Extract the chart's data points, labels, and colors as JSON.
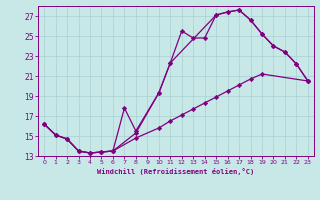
{
  "xlabel": "Windchill (Refroidissement éolien,°C)",
  "bg_color": "#c8e8e8",
  "grid_color": "#a8d0d0",
  "line_color": "#800080",
  "xlim": [
    -0.5,
    23.5
  ],
  "ylim": [
    13,
    28
  ],
  "xticks": [
    0,
    1,
    2,
    3,
    4,
    5,
    6,
    7,
    8,
    9,
    10,
    11,
    12,
    13,
    14,
    15,
    16,
    17,
    18,
    19,
    20,
    21,
    22,
    23
  ],
  "yticks": [
    13,
    15,
    17,
    19,
    21,
    23,
    25,
    27
  ],
  "line1_x": [
    0,
    1,
    2,
    3,
    4,
    5,
    6,
    7,
    8,
    10,
    11,
    12,
    13,
    14,
    15,
    16,
    17,
    18,
    19,
    20,
    21,
    22,
    23
  ],
  "line1_y": [
    16.2,
    15.1,
    14.7,
    13.5,
    13.3,
    13.4,
    13.5,
    17.8,
    15.5,
    19.3,
    22.3,
    25.5,
    24.8,
    24.8,
    27.1,
    27.4,
    27.6,
    26.6,
    25.2,
    24.0,
    23.4,
    22.2,
    20.5
  ],
  "line2_x": [
    0,
    1,
    2,
    3,
    4,
    5,
    6,
    8,
    10,
    11,
    15,
    16,
    17,
    18,
    19,
    20,
    21,
    22,
    23
  ],
  "line2_y": [
    16.2,
    15.1,
    14.7,
    13.5,
    13.3,
    13.4,
    13.5,
    15.3,
    19.3,
    22.3,
    27.1,
    27.4,
    27.6,
    26.6,
    25.2,
    24.0,
    23.4,
    22.2,
    20.5
  ],
  "line3_x": [
    0,
    1,
    2,
    3,
    4,
    5,
    6,
    8,
    10,
    11,
    12,
    13,
    14,
    15,
    16,
    17,
    18,
    19,
    23
  ],
  "line3_y": [
    16.2,
    15.1,
    14.7,
    13.5,
    13.3,
    13.4,
    13.5,
    14.8,
    15.8,
    16.5,
    17.1,
    17.7,
    18.3,
    18.9,
    19.5,
    20.1,
    20.7,
    21.2,
    20.5
  ]
}
